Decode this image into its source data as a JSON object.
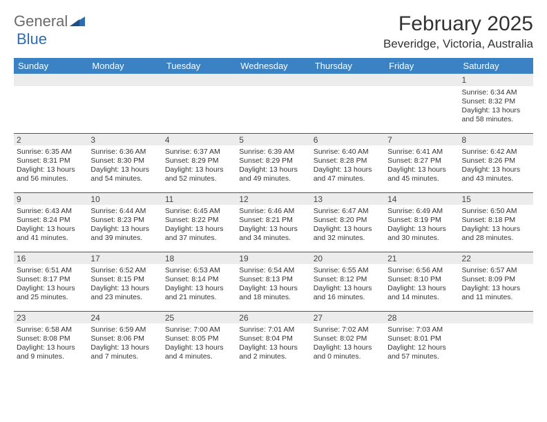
{
  "logo": {
    "part1": "General",
    "part2": "Blue"
  },
  "title": "February 2025",
  "location": "Beveridge, Victoria, Australia",
  "header_bg": "#3b82c4",
  "header_text": "#ffffff",
  "daybar_bg": "#ececec",
  "daybar_border": "#2a5d8f",
  "text_color": "#333333",
  "columns": [
    "Sunday",
    "Monday",
    "Tuesday",
    "Wednesday",
    "Thursday",
    "Friday",
    "Saturday"
  ],
  "weeks": [
    [
      {
        "n": "",
        "sr": "",
        "ss": "",
        "dl": ""
      },
      {
        "n": "",
        "sr": "",
        "ss": "",
        "dl": ""
      },
      {
        "n": "",
        "sr": "",
        "ss": "",
        "dl": ""
      },
      {
        "n": "",
        "sr": "",
        "ss": "",
        "dl": ""
      },
      {
        "n": "",
        "sr": "",
        "ss": "",
        "dl": ""
      },
      {
        "n": "",
        "sr": "",
        "ss": "",
        "dl": ""
      },
      {
        "n": "1",
        "sr": "Sunrise: 6:34 AM",
        "ss": "Sunset: 8:32 PM",
        "dl": "Daylight: 13 hours and 58 minutes."
      }
    ],
    [
      {
        "n": "2",
        "sr": "Sunrise: 6:35 AM",
        "ss": "Sunset: 8:31 PM",
        "dl": "Daylight: 13 hours and 56 minutes."
      },
      {
        "n": "3",
        "sr": "Sunrise: 6:36 AM",
        "ss": "Sunset: 8:30 PM",
        "dl": "Daylight: 13 hours and 54 minutes."
      },
      {
        "n": "4",
        "sr": "Sunrise: 6:37 AM",
        "ss": "Sunset: 8:29 PM",
        "dl": "Daylight: 13 hours and 52 minutes."
      },
      {
        "n": "5",
        "sr": "Sunrise: 6:39 AM",
        "ss": "Sunset: 8:29 PM",
        "dl": "Daylight: 13 hours and 49 minutes."
      },
      {
        "n": "6",
        "sr": "Sunrise: 6:40 AM",
        "ss": "Sunset: 8:28 PM",
        "dl": "Daylight: 13 hours and 47 minutes."
      },
      {
        "n": "7",
        "sr": "Sunrise: 6:41 AM",
        "ss": "Sunset: 8:27 PM",
        "dl": "Daylight: 13 hours and 45 minutes."
      },
      {
        "n": "8",
        "sr": "Sunrise: 6:42 AM",
        "ss": "Sunset: 8:26 PM",
        "dl": "Daylight: 13 hours and 43 minutes."
      }
    ],
    [
      {
        "n": "9",
        "sr": "Sunrise: 6:43 AM",
        "ss": "Sunset: 8:24 PM",
        "dl": "Daylight: 13 hours and 41 minutes."
      },
      {
        "n": "10",
        "sr": "Sunrise: 6:44 AM",
        "ss": "Sunset: 8:23 PM",
        "dl": "Daylight: 13 hours and 39 minutes."
      },
      {
        "n": "11",
        "sr": "Sunrise: 6:45 AM",
        "ss": "Sunset: 8:22 PM",
        "dl": "Daylight: 13 hours and 37 minutes."
      },
      {
        "n": "12",
        "sr": "Sunrise: 6:46 AM",
        "ss": "Sunset: 8:21 PM",
        "dl": "Daylight: 13 hours and 34 minutes."
      },
      {
        "n": "13",
        "sr": "Sunrise: 6:47 AM",
        "ss": "Sunset: 8:20 PM",
        "dl": "Daylight: 13 hours and 32 minutes."
      },
      {
        "n": "14",
        "sr": "Sunrise: 6:49 AM",
        "ss": "Sunset: 8:19 PM",
        "dl": "Daylight: 13 hours and 30 minutes."
      },
      {
        "n": "15",
        "sr": "Sunrise: 6:50 AM",
        "ss": "Sunset: 8:18 PM",
        "dl": "Daylight: 13 hours and 28 minutes."
      }
    ],
    [
      {
        "n": "16",
        "sr": "Sunrise: 6:51 AM",
        "ss": "Sunset: 8:17 PM",
        "dl": "Daylight: 13 hours and 25 minutes."
      },
      {
        "n": "17",
        "sr": "Sunrise: 6:52 AM",
        "ss": "Sunset: 8:15 PM",
        "dl": "Daylight: 13 hours and 23 minutes."
      },
      {
        "n": "18",
        "sr": "Sunrise: 6:53 AM",
        "ss": "Sunset: 8:14 PM",
        "dl": "Daylight: 13 hours and 21 minutes."
      },
      {
        "n": "19",
        "sr": "Sunrise: 6:54 AM",
        "ss": "Sunset: 8:13 PM",
        "dl": "Daylight: 13 hours and 18 minutes."
      },
      {
        "n": "20",
        "sr": "Sunrise: 6:55 AM",
        "ss": "Sunset: 8:12 PM",
        "dl": "Daylight: 13 hours and 16 minutes."
      },
      {
        "n": "21",
        "sr": "Sunrise: 6:56 AM",
        "ss": "Sunset: 8:10 PM",
        "dl": "Daylight: 13 hours and 14 minutes."
      },
      {
        "n": "22",
        "sr": "Sunrise: 6:57 AM",
        "ss": "Sunset: 8:09 PM",
        "dl": "Daylight: 13 hours and 11 minutes."
      }
    ],
    [
      {
        "n": "23",
        "sr": "Sunrise: 6:58 AM",
        "ss": "Sunset: 8:08 PM",
        "dl": "Daylight: 13 hours and 9 minutes."
      },
      {
        "n": "24",
        "sr": "Sunrise: 6:59 AM",
        "ss": "Sunset: 8:06 PM",
        "dl": "Daylight: 13 hours and 7 minutes."
      },
      {
        "n": "25",
        "sr": "Sunrise: 7:00 AM",
        "ss": "Sunset: 8:05 PM",
        "dl": "Daylight: 13 hours and 4 minutes."
      },
      {
        "n": "26",
        "sr": "Sunrise: 7:01 AM",
        "ss": "Sunset: 8:04 PM",
        "dl": "Daylight: 13 hours and 2 minutes."
      },
      {
        "n": "27",
        "sr": "Sunrise: 7:02 AM",
        "ss": "Sunset: 8:02 PM",
        "dl": "Daylight: 13 hours and 0 minutes."
      },
      {
        "n": "28",
        "sr": "Sunrise: 7:03 AM",
        "ss": "Sunset: 8:01 PM",
        "dl": "Daylight: 12 hours and 57 minutes."
      },
      {
        "n": "",
        "sr": "",
        "ss": "",
        "dl": ""
      }
    ]
  ]
}
